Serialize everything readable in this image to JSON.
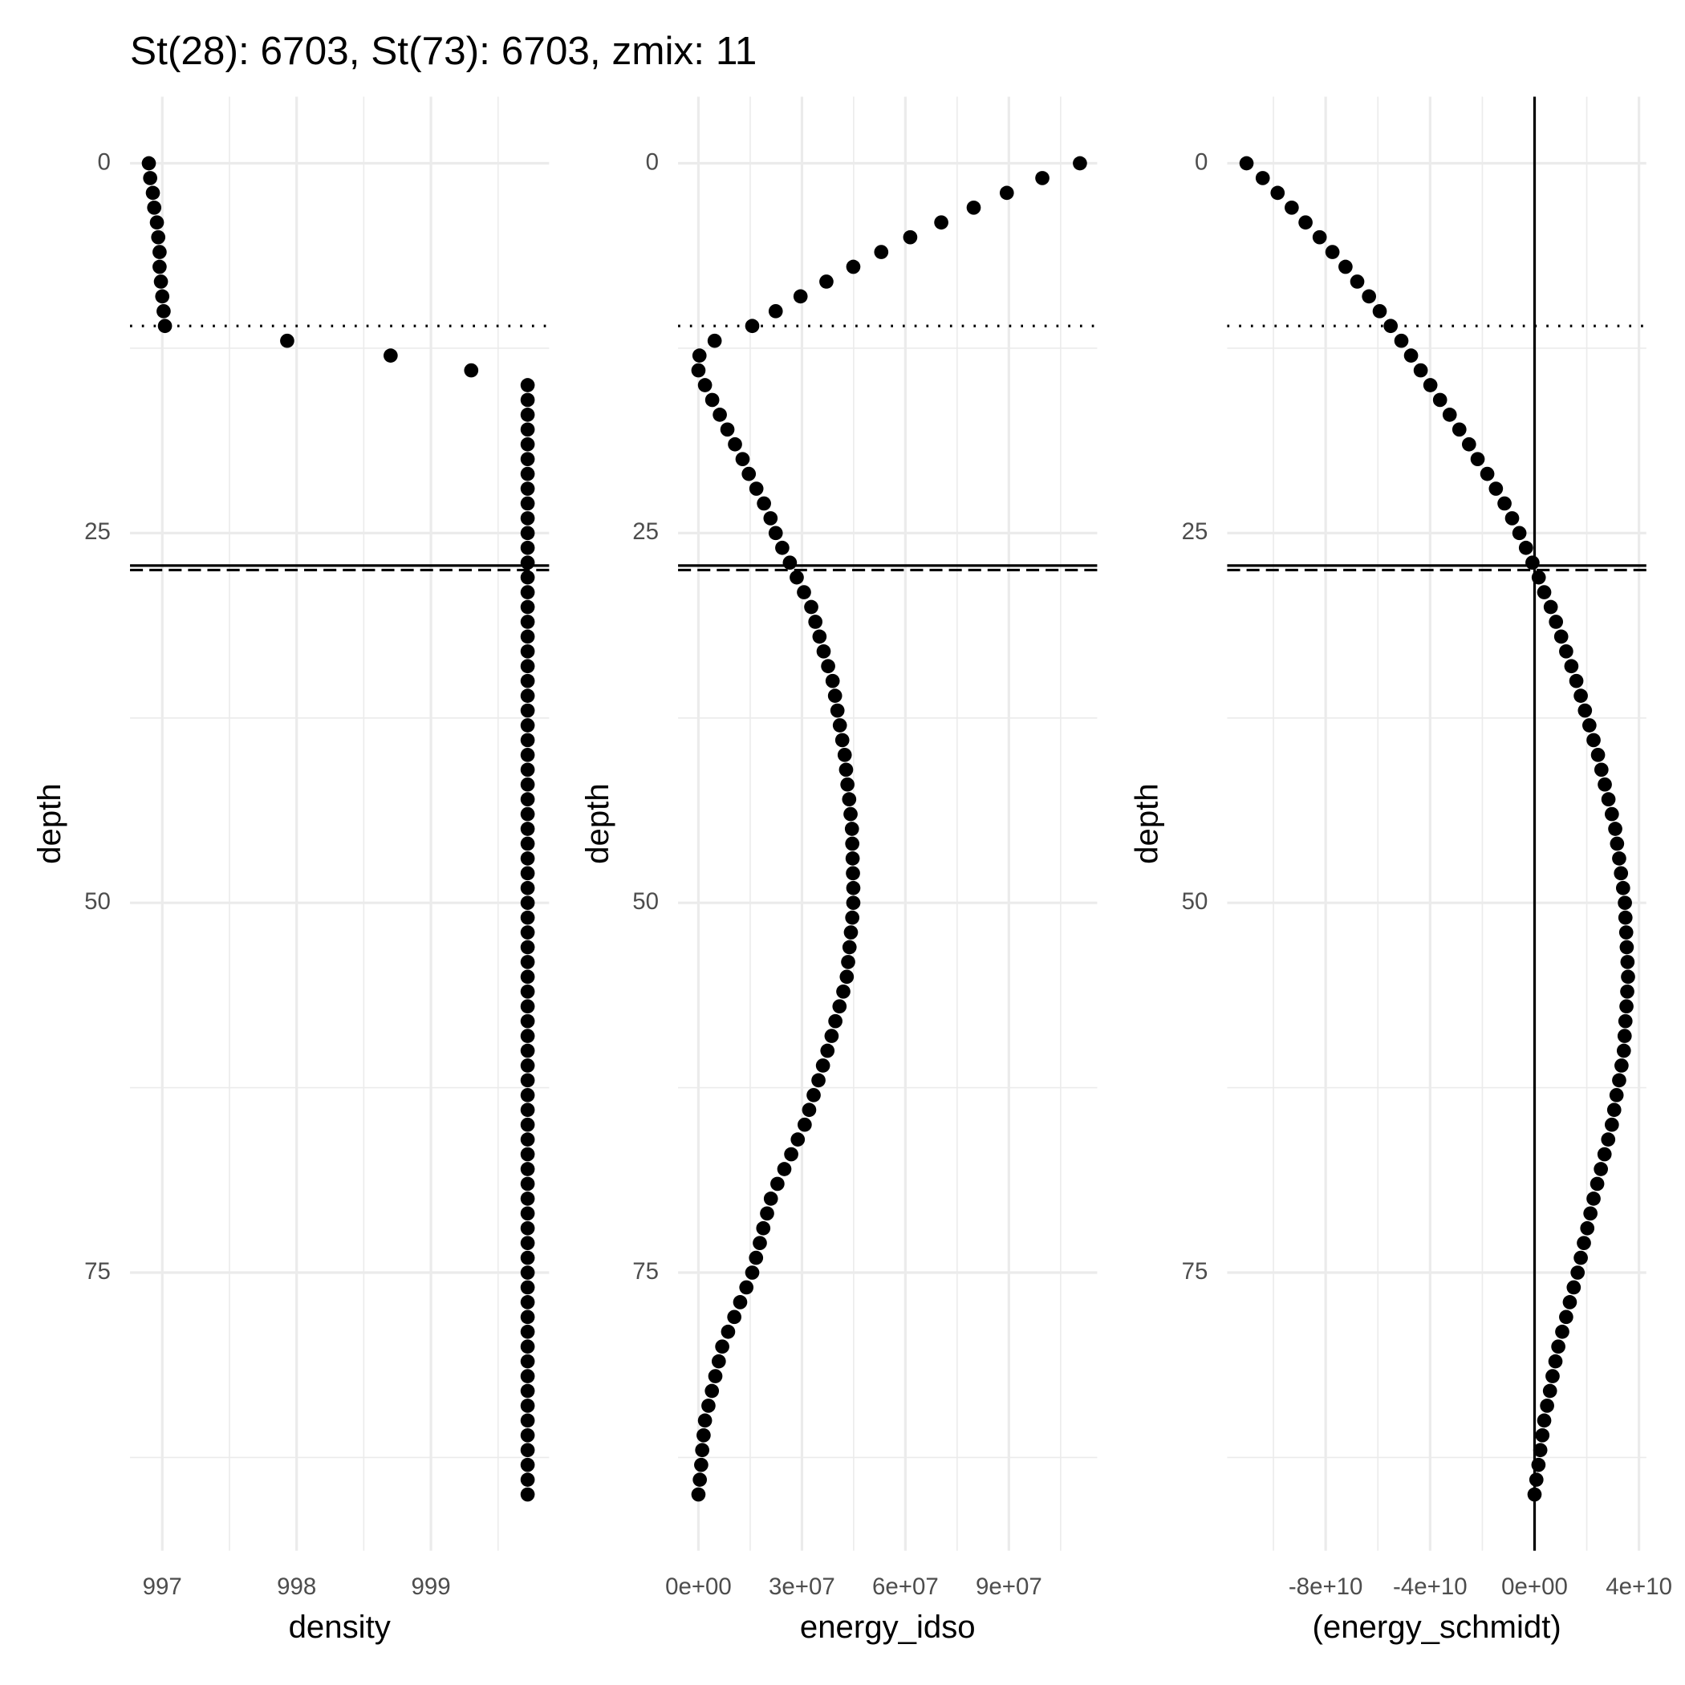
{
  "title": "St(28): 6703, St(73): 6703, zmix: 11",
  "chart_data": [
    {
      "type": "scatter",
      "xlabel": "density",
      "ylabel": "depth",
      "xlim": [
        996.76,
        999.88
      ],
      "xticks": [
        997,
        998,
        999
      ],
      "ylim": [
        93.8,
        -4.5
      ],
      "yticks": [
        0,
        25,
        50,
        75
      ],
      "grid": true,
      "color": "#000000",
      "hlines": [
        {
          "value": 11,
          "style": "dotted"
        },
        {
          "value": 27.2,
          "style": "solid"
        },
        {
          "value": 27.5,
          "style": "dashed"
        }
      ],
      "vlines": [],
      "x": [
        996.9,
        996.91,
        996.93,
        996.94,
        996.96,
        996.97,
        996.98,
        996.98,
        996.99,
        997.0,
        997.01,
        997.02,
        997.93,
        998.7,
        999.3,
        999.72,
        999.72,
        999.72,
        999.72,
        999.72,
        999.72,
        999.72,
        999.72,
        999.72,
        999.72,
        999.72,
        999.72,
        999.72,
        999.72,
        999.72,
        999.72,
        999.72,
        999.72,
        999.72,
        999.72,
        999.72,
        999.72,
        999.72,
        999.72,
        999.72,
        999.72,
        999.72,
        999.72,
        999.72,
        999.72,
        999.72,
        999.72,
        999.72,
        999.72,
        999.72,
        999.72,
        999.72,
        999.72,
        999.72,
        999.72,
        999.72,
        999.72,
        999.72,
        999.72,
        999.72,
        999.72,
        999.72,
        999.72,
        999.72,
        999.72,
        999.72,
        999.72,
        999.72,
        999.72,
        999.72,
        999.72,
        999.72,
        999.72,
        999.72,
        999.72,
        999.72,
        999.72,
        999.72,
        999.72,
        999.72,
        999.72,
        999.72,
        999.72,
        999.72,
        999.72,
        999.72,
        999.72,
        999.72,
        999.72,
        999.72,
        999.72
      ],
      "y": [
        0,
        1,
        2,
        3,
        4,
        5,
        6,
        7,
        8,
        9,
        10,
        11,
        12,
        13,
        14,
        15,
        16,
        17,
        18,
        19,
        20,
        21,
        22,
        23,
        24,
        25,
        26,
        27,
        28,
        29,
        30,
        31,
        32,
        33,
        34,
        35,
        36,
        37,
        38,
        39,
        40,
        41,
        42,
        43,
        44,
        45,
        46,
        47,
        48,
        49,
        50,
        51,
        52,
        53,
        54,
        55,
        56,
        57,
        58,
        59,
        60,
        61,
        62,
        63,
        64,
        65,
        66,
        67,
        68,
        69,
        70,
        71,
        72,
        73,
        74,
        75,
        76,
        77,
        78,
        79,
        80,
        81,
        82,
        83,
        84,
        85,
        86,
        87,
        88,
        89,
        90
      ]
    },
    {
      "type": "scatter",
      "xlabel": "energy_idso",
      "ylabel": "depth",
      "xlim": [
        -5900000.0,
        115600000.0
      ],
      "xticks": [
        {
          "value": 0,
          "label": "0e+00"
        },
        {
          "value": 30000000.0,
          "label": "3e+07"
        },
        {
          "value": 60000000.0,
          "label": "6e+07"
        },
        {
          "value": 90000000.0,
          "label": "9e+07"
        }
      ],
      "ylim": [
        93.8,
        -4.5
      ],
      "yticks": [
        0,
        25,
        50,
        75
      ],
      "grid": true,
      "color": "#000000",
      "hlines": [
        {
          "value": 11,
          "style": "dotted"
        },
        {
          "value": 27.2,
          "style": "solid"
        },
        {
          "value": 27.5,
          "style": "dashed"
        }
      ],
      "vlines": [],
      "x": [
        110600000.0,
        99700000.0,
        89400000.0,
        79800000.0,
        70400000.0,
        61400000.0,
        53000000.0,
        44900000.0,
        37100000.0,
        29600000.0,
        22400000.0,
        15600000.0,
        4700000.0,
        300000.0,
        0,
        1900000.0,
        4000000.0,
        6200000.0,
        8400000.0,
        10600000.0,
        12800000.0,
        14600000.0,
        16800000.0,
        19000000.0,
        20900000.0,
        22400000.0,
        24300000.0,
        26500000.0,
        28500000.0,
        30600000.0,
        32700000.0,
        33900000.0,
        35100000.0,
        36300000.0,
        37600000.0,
        38900000.0,
        39600000.0,
        40300000.0,
        41000000.0,
        41700000.0,
        42400000.0,
        42800000.0,
        43200000.0,
        43700000.0,
        44100000.0,
        44500000.0,
        44600000.0,
        44700000.0,
        44800000.0,
        44900000.0,
        44900000.0,
        44600000.0,
        44200000.0,
        43800000.0,
        43400000.0,
        43000000.0,
        42000000.0,
        40900000.0,
        39700000.0,
        38600000.0,
        37400000.0,
        36100000.0,
        34800000.0,
        33400000.0,
        32100000.0,
        30800000.0,
        28800000.0,
        26900000.0,
        24900000.0,
        22900000.0,
        21000000.0,
        19900000.0,
        18800000.0,
        17800000.0,
        16700000.0,
        15600000.0,
        13900000.0,
        12100000.0,
        10400000.0,
        8600000.0,
        6900000.0,
        5900000.0,
        4900000.0,
        3900000.0,
        2900000.0,
        1900000.0,
        1500000.0,
        1100000.0,
        800000.0,
        400000.0,
        0
      ],
      "y": [
        0,
        1,
        2,
        3,
        4,
        5,
        6,
        7,
        8,
        9,
        10,
        11,
        12,
        13,
        14,
        15,
        16,
        17,
        18,
        19,
        20,
        21,
        22,
        23,
        24,
        25,
        26,
        27,
        28,
        29,
        30,
        31,
        32,
        33,
        34,
        35,
        36,
        37,
        38,
        39,
        40,
        41,
        42,
        43,
        44,
        45,
        46,
        47,
        48,
        49,
        50,
        51,
        52,
        53,
        54,
        55,
        56,
        57,
        58,
        59,
        60,
        61,
        62,
        63,
        64,
        65,
        66,
        67,
        68,
        69,
        70,
        71,
        72,
        73,
        74,
        75,
        76,
        77,
        78,
        79,
        80,
        81,
        82,
        83,
        84,
        85,
        86,
        87,
        88,
        89,
        90
      ]
    },
    {
      "type": "scatter",
      "xlabel": "(energy_schmidt)",
      "ylabel": "depth",
      "xlim": [
        -117700000000.0,
        42800000000.0
      ],
      "xticks": [
        {
          "value": -80000000000.0,
          "label": "-8e+10"
        },
        {
          "value": -40000000000.0,
          "label": "-4e+10"
        },
        {
          "value": 0,
          "label": "0e+00"
        },
        {
          "value": 40000000000.0,
          "label": "4e+10"
        }
      ],
      "ylim": [
        93.8,
        -4.5
      ],
      "yticks": [
        0,
        25,
        50,
        75
      ],
      "grid": true,
      "color": "#000000",
      "hlines": [
        {
          "value": 11,
          "style": "dotted"
        },
        {
          "value": 27.2,
          "style": "solid"
        },
        {
          "value": 27.5,
          "style": "dashed"
        }
      ],
      "vlines": [
        {
          "value": 0,
          "style": "solid"
        }
      ],
      "x": [
        -110300000000.0,
        -104100000000.0,
        -98400000000.0,
        -93000000000.0,
        -87700000000.0,
        -82300000000.0,
        -77400000000.0,
        -72400000000.0,
        -67900000000.0,
        -63400000000.0,
        -59300000000.0,
        -55100000000.0,
        -51000000000.0,
        -47300000000.0,
        -43600000000.0,
        -39900000000.0,
        -36200000000.0,
        -32500000000.0,
        -28800000000.0,
        -25100000000.0,
        -21800000000.0,
        -18100000000.0,
        -14800000000.0,
        -11500000000.0,
        -8600000000.0,
        -5800000000.0,
        -3300000000.0,
        -800000000.0,
        1600000000.0,
        3700000000.0,
        6200000000.0,
        8200000000.0,
        10200000000.0,
        12100000000.0,
        14100000000.0,
        16000000000.0,
        17700000000.0,
        19300000000.0,
        21000000000.0,
        22600000000.0,
        24300000000.0,
        25600000000.0,
        26900000000.0,
        28300000000.0,
        29600000000.0,
        30900000000.0,
        31600000000.0,
        32400000000.0,
        33100000000.0,
        33900000000.0,
        34600000000.0,
        34800000000.0,
        35100000000.0,
        35300000000.0,
        35600000000.0,
        35800000000.0,
        35500000000.0,
        35200000000.0,
        34800000000.0,
        34500000000.0,
        34200000000.0,
        33300000000.0,
        32400000000.0,
        31400000000.0,
        30500000000.0,
        29600000000.0,
        28200000000.0,
        26800000000.0,
        25400000000.0,
        24000000000.0,
        22600000000.0,
        21400000000.0,
        20200000000.0,
        18900000000.0,
        17700000000.0,
        16500000000.0,
        15000000000.0,
        13500000000.0,
        12100000000.0,
        10600000000.0,
        9100000000.0,
        8000000000.0,
        6900000000.0,
        5900000000.0,
        4800000000.0,
        3700000000.0,
        3000000000.0,
        2200000000.0,
        1500000000.0,
        700000000.0,
        0
      ],
      "y": [
        0,
        1,
        2,
        3,
        4,
        5,
        6,
        7,
        8,
        9,
        10,
        11,
        12,
        13,
        14,
        15,
        16,
        17,
        18,
        19,
        20,
        21,
        22,
        23,
        24,
        25,
        26,
        27,
        28,
        29,
        30,
        31,
        32,
        33,
        34,
        35,
        36,
        37,
        38,
        39,
        40,
        41,
        42,
        43,
        44,
        45,
        46,
        47,
        48,
        49,
        50,
        51,
        52,
        53,
        54,
        55,
        56,
        57,
        58,
        59,
        60,
        61,
        62,
        63,
        64,
        65,
        66,
        67,
        68,
        69,
        70,
        71,
        72,
        73,
        74,
        75,
        76,
        77,
        78,
        79,
        80,
        81,
        82,
        83,
        84,
        85,
        86,
        87,
        88,
        89,
        90
      ]
    }
  ]
}
